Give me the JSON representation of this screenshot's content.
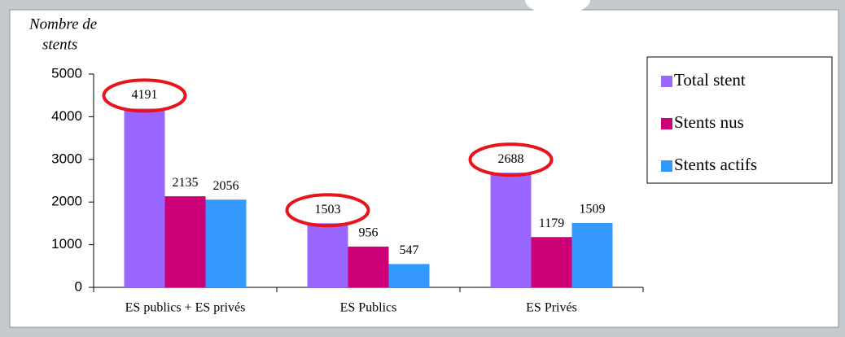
{
  "chart_data": {
    "type": "bar",
    "y_label_lines": [
      "Nombre de",
      "stents"
    ],
    "categories": [
      "ES publics + ES privés",
      "ES Publics",
      "ES Privés"
    ],
    "series": [
      {
        "name": "Total stent",
        "color": "#9966ff",
        "values": [
          4191,
          1503,
          2688
        ]
      },
      {
        "name": "Stents nus",
        "color": "#cc0077",
        "values": [
          2135,
          956,
          1179
        ]
      },
      {
        "name": "Stents actifs",
        "color": "#3399ff",
        "values": [
          2056,
          547,
          1509
        ]
      }
    ],
    "ylim": [
      0,
      5000
    ],
    "yticks": [
      0,
      1000,
      2000,
      3000,
      4000,
      5000
    ],
    "legend": "right",
    "highlight_series": 0
  }
}
